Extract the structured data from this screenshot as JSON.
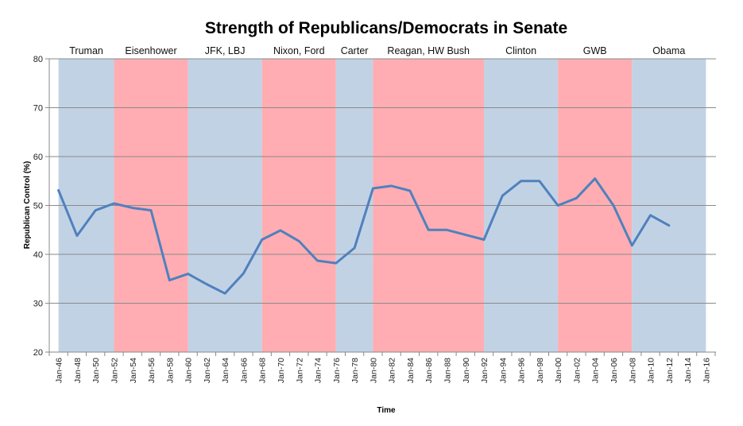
{
  "chart_data": {
    "type": "line",
    "title": "Strength of Republicans/Democrats in Senate",
    "xlabel": "Time",
    "ylabel": "Republican  Control (%)",
    "ylim": [
      20,
      80
    ],
    "yticks": [
      20,
      30,
      40,
      50,
      60,
      70,
      80
    ],
    "grid": true,
    "x_tick_labels": [
      "Jan-46",
      "Jan-48",
      "Jan-50",
      "Jan-52",
      "Jan-54",
      "Jan-56",
      "Jan-58",
      "Jan-60",
      "Jan-62",
      "Jan-64",
      "Jan-66",
      "Jan-68",
      "Jan-70",
      "Jan-72",
      "Jan-74",
      "Jan-76",
      "Jan-78",
      "Jan-80",
      "Jan-82",
      "Jan-84",
      "Jan-86",
      "Jan-88",
      "Jan-90",
      "Jan-92",
      "Jan-94",
      "Jan-96",
      "Jan-98",
      "Jan-00",
      "Jan-02",
      "Jan-04",
      "Jan-06",
      "Jan-08",
      "Jan-10",
      "Jan-12",
      "Jan-14",
      "Jan-16"
    ],
    "series": [
      {
        "color": "#4f81bd",
        "x": [
          "Jan-46",
          "Jan-48",
          "Jan-50",
          "Jan-52",
          "Jan-54",
          "Jan-56",
          "Jan-58",
          "Jan-60",
          "Jan-62",
          "Jan-64",
          "Jan-66",
          "Jan-68",
          "Jan-70",
          "Jan-72",
          "Jan-74",
          "Jan-76",
          "Jan-78",
          "Jan-80",
          "Jan-82",
          "Jan-84",
          "Jan-86",
          "Jan-88",
          "Jan-90",
          "Jan-92",
          "Jan-94",
          "Jan-96",
          "Jan-98",
          "Jan-00",
          "Jan-02",
          "Jan-04",
          "Jan-06",
          "Jan-08",
          "Jan-10",
          "Jan-12"
        ],
        "values": [
          53.1,
          43.8,
          49.0,
          50.4,
          49.5,
          49.0,
          34.7,
          36.0,
          33.9,
          32.0,
          36.1,
          43.0,
          44.9,
          42.7,
          38.7,
          38.2,
          41.3,
          53.5,
          54.0,
          53.0,
          45.0,
          45.0,
          44.0,
          43.0,
          52.0,
          55.0,
          55.0,
          50.0,
          51.5,
          55.5,
          50.0,
          41.8,
          48.0,
          45.9
        ]
      }
    ],
    "eras": [
      {
        "label": "Truman",
        "start": "Jan-46",
        "end": "Jan-52",
        "party": "D",
        "color": "#c2d2e5"
      },
      {
        "label": "Eisenhower",
        "start": "Jan-52",
        "end": "Jan-60",
        "party": "R",
        "color": "#ffadb2"
      },
      {
        "label": "JFK, LBJ",
        "start": "Jan-60",
        "end": "Jan-68",
        "party": "D",
        "color": "#c2d2e5"
      },
      {
        "label": "Nixon, Ford",
        "start": "Jan-68",
        "end": "Jan-76",
        "party": "R",
        "color": "#ffadb2"
      },
      {
        "label": "Carter",
        "start": "Jan-76",
        "end": "Jan-80",
        "party": "D",
        "color": "#c2d2e5"
      },
      {
        "label": "Reagan, HW Bush",
        "start": "Jan-80",
        "end": "Jan-92",
        "party": "R",
        "color": "#ffadb2"
      },
      {
        "label": "Clinton",
        "start": "Jan-92",
        "end": "Jan-00",
        "party": "D",
        "color": "#c2d2e5"
      },
      {
        "label": "GWB",
        "start": "Jan-00",
        "end": "Jan-08",
        "party": "R",
        "color": "#ffadb2"
      },
      {
        "label": "Obama",
        "start": "Jan-08",
        "end": "Jan-16",
        "party": "D",
        "color": "#c2d2e5"
      }
    ]
  }
}
